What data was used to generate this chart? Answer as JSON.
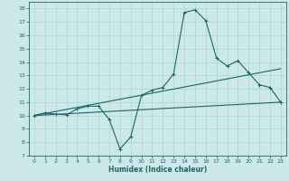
{
  "title": "",
  "xlabel": "Humidex (Indice chaleur)",
  "ylabel": "",
  "bg_color": "#cce8e8",
  "line_color": "#1a6666",
  "grid_color": "#aad4d4",
  "xlim": [
    -0.5,
    23.5
  ],
  "ylim": [
    7,
    18.5
  ],
  "xticks": [
    0,
    1,
    2,
    3,
    4,
    5,
    6,
    7,
    8,
    9,
    10,
    11,
    12,
    13,
    14,
    15,
    16,
    17,
    18,
    19,
    20,
    21,
    22,
    23
  ],
  "yticks": [
    7,
    8,
    9,
    10,
    11,
    12,
    13,
    14,
    15,
    16,
    17,
    18
  ],
  "series_main": {
    "x": [
      0,
      1,
      2,
      3,
      4,
      5,
      6,
      7,
      8,
      9,
      10,
      11,
      12,
      13,
      14,
      15,
      16,
      17,
      18,
      19,
      20,
      21,
      22,
      23
    ],
    "y": [
      10.0,
      10.2,
      10.1,
      10.05,
      10.5,
      10.7,
      10.7,
      9.7,
      7.5,
      8.4,
      11.5,
      11.9,
      12.1,
      13.1,
      17.7,
      17.9,
      17.1,
      14.3,
      13.7,
      14.1,
      13.2,
      12.3,
      12.1,
      11.0
    ]
  },
  "trend1": {
    "x": [
      0,
      23
    ],
    "y": [
      10.0,
      13.5
    ]
  },
  "trend2": {
    "x": [
      0,
      23
    ],
    "y": [
      10.0,
      11.0
    ]
  }
}
